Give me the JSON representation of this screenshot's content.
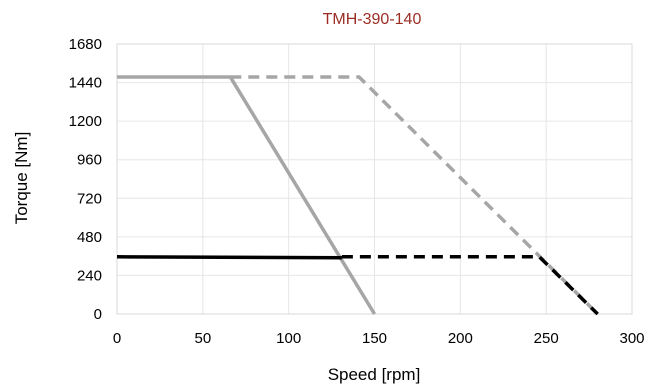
{
  "chart_data": {
    "type": "line",
    "title": "TMH-390-140",
    "xlabel": "Speed [rpm]",
    "ylabel": "Torque [Nm]",
    "xlim": [
      0,
      300
    ],
    "ylim": [
      0,
      1680
    ],
    "xticks": [
      0,
      50,
      100,
      150,
      200,
      250,
      300
    ],
    "yticks": [
      0,
      240,
      480,
      720,
      960,
      1200,
      1440,
      1680
    ],
    "grid": true,
    "legend": "none",
    "series": [
      {
        "style": "solid",
        "color": "#a6a6a6",
        "x": [
          0,
          66,
          150
        ],
        "y": [
          1475,
          1475,
          0
        ]
      },
      {
        "style": "dashed",
        "color": "#a6a6a6",
        "x": [
          66,
          141,
          280
        ],
        "y": [
          1475,
          1475,
          0
        ]
      },
      {
        "style": "solid",
        "color": "#000000",
        "x": [
          0,
          131
        ],
        "y": [
          356,
          350
        ]
      },
      {
        "style": "dashed",
        "color": "#000000",
        "x": [
          131,
          246,
          280
        ],
        "y": [
          356,
          356,
          0
        ]
      }
    ],
    "colors": {
      "title": "#9b2d24",
      "grid": "#e6e6e6",
      "frame": "#d9d9d9"
    }
  }
}
